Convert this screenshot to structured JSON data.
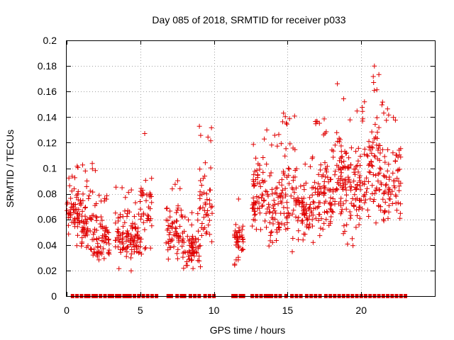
{
  "chart_data": {
    "type": "scatter",
    "title": "Day 085 of 2018, SRMTID for receiver p033",
    "xlabel": "GPS time / hours",
    "ylabel": "SRMTID / TECUs",
    "xlim": [
      0,
      25
    ],
    "ylim": [
      0,
      0.2
    ],
    "x_ticks": [
      0,
      5,
      10,
      15,
      20
    ],
    "x_tick_labels": [
      "0",
      "5",
      "10",
      "15",
      "20"
    ],
    "y_ticks": [
      0,
      0.02,
      0.04,
      0.06,
      0.08,
      0.1,
      0.12,
      0.14,
      0.16,
      0.18,
      0.2
    ],
    "y_tick_labels": [
      "0",
      "0.02",
      "0.04",
      "0.06",
      "0.08",
      "0.1",
      "0.12",
      "0.14",
      "0.16",
      "0.18",
      "0.2"
    ],
    "grid": true,
    "marker": "plus",
    "zero_marker": "square",
    "series_color": "#e00000",
    "segments": [
      {
        "x_start": 0.0,
        "x_end": 1.2,
        "y_min": 0.035,
        "y_max": 0.102,
        "n": 75
      },
      {
        "x_start": 1.0,
        "x_end": 2.1,
        "y_min": 0.02,
        "y_max": 0.108,
        "n": 60
      },
      {
        "x_start": 2.0,
        "x_end": 2.9,
        "y_min": 0.015,
        "y_max": 0.083,
        "n": 55
      },
      {
        "x_start": 3.3,
        "x_end": 4.4,
        "y_min": 0.015,
        "y_max": 0.086,
        "n": 70
      },
      {
        "x_start": 4.4,
        "x_end": 5.0,
        "y_min": 0.02,
        "y_max": 0.075,
        "n": 40
      },
      {
        "x_start": 5.0,
        "x_end": 5.8,
        "y_min": 0.02,
        "y_max": 0.13,
        "n": 40
      },
      {
        "x_start": 6.7,
        "x_end": 7.8,
        "y_min": 0.02,
        "y_max": 0.094,
        "n": 60
      },
      {
        "x_start": 7.8,
        "x_end": 9.0,
        "y_min": 0.015,
        "y_max": 0.066,
        "n": 70
      },
      {
        "x_start": 9.0,
        "x_end": 9.9,
        "y_min": 0.02,
        "y_max": 0.136,
        "n": 50
      },
      {
        "x_start": 11.4,
        "x_end": 12.0,
        "y_min": 0.018,
        "y_max": 0.083,
        "n": 45
      },
      {
        "x_start": 12.6,
        "x_end": 13.7,
        "y_min": 0.035,
        "y_max": 0.132,
        "n": 70
      },
      {
        "x_start": 13.7,
        "x_end": 14.6,
        "y_min": 0.025,
        "y_max": 0.127,
        "n": 55
      },
      {
        "x_start": 14.6,
        "x_end": 15.6,
        "y_min": 0.03,
        "y_max": 0.144,
        "n": 60
      },
      {
        "x_start": 15.6,
        "x_end": 16.8,
        "y_min": 0.035,
        "y_max": 0.11,
        "n": 70
      },
      {
        "x_start": 16.8,
        "x_end": 18.0,
        "y_min": 0.03,
        "y_max": 0.141,
        "n": 80
      },
      {
        "x_start": 18.0,
        "x_end": 19.2,
        "y_min": 0.035,
        "y_max": 0.168,
        "n": 85
      },
      {
        "x_start": 19.2,
        "x_end": 20.3,
        "y_min": 0.03,
        "y_max": 0.155,
        "n": 75
      },
      {
        "x_start": 20.3,
        "x_end": 21.3,
        "y_min": 0.04,
        "y_max": 0.182,
        "n": 70
      },
      {
        "x_start": 21.3,
        "x_end": 22.7,
        "y_min": 0.042,
        "y_max": 0.152,
        "n": 80
      }
    ],
    "zero_points": [
      0.4,
      0.7,
      1.0,
      1.3,
      1.5,
      1.8,
      2.0,
      2.3,
      2.6,
      2.9,
      3.1,
      3.4,
      3.6,
      3.9,
      4.1,
      4.3,
      4.6,
      4.9,
      5.2,
      5.5,
      5.8,
      6.1,
      6.9,
      7.1,
      7.5,
      7.8,
      8.0,
      8.4,
      8.7,
      9.0,
      9.4,
      9.7,
      10.0,
      11.3,
      11.5,
      11.8,
      12.0,
      12.6,
      12.9,
      13.2,
      13.5,
      13.7,
      13.9,
      14.2,
      14.5,
      14.9,
      15.3,
      15.6,
      15.9,
      16.3,
      16.6,
      16.9,
      17.2,
      17.6,
      17.9,
      18.2,
      18.5,
      18.8,
      19.1,
      19.4,
      19.7,
      20.0,
      20.3,
      20.6,
      20.9,
      21.2,
      21.5,
      21.8,
      22.1,
      22.4,
      22.7,
      23.0
    ]
  }
}
